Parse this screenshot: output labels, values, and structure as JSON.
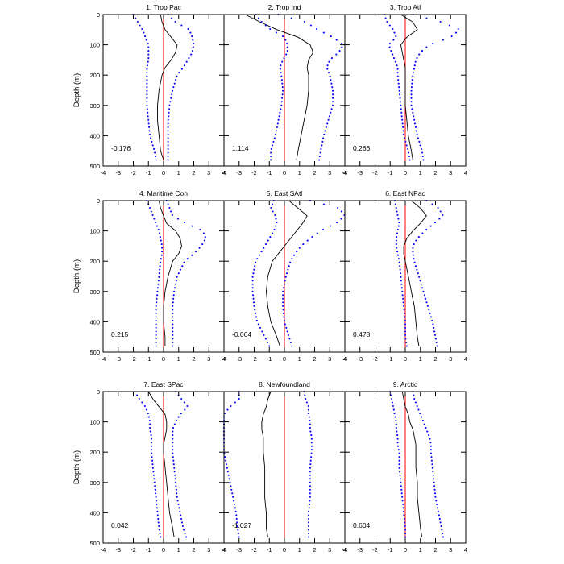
{
  "figure": {
    "ylabel": "Depth (m)"
  },
  "colors": {
    "axis": "#000000",
    "curve": "#000000",
    "zero_line": "#ff0000",
    "dots": "#0000ff",
    "background": "#ffffff"
  },
  "chart_data": [
    {
      "type": "line",
      "title": "1. Trop Pac",
      "annotation": "-0.176",
      "xlim": [
        -4,
        4
      ],
      "ylim": [
        500,
        0
      ],
      "xticks": [
        -4,
        -3,
        -2,
        -1,
        0,
        1,
        2,
        3,
        4
      ],
      "yticks": [
        0,
        100,
        200,
        300,
        400,
        500
      ],
      "depth": [
        0,
        25,
        50,
        75,
        100,
        125,
        150,
        175,
        200,
        250,
        300,
        350,
        400,
        450,
        480
      ],
      "series": [
        {
          "values": [
            -0.2,
            -0.1,
            0.1,
            0.5,
            0.9,
            0.8,
            0.5,
            0.1,
            -0.1,
            -0.3,
            -0.4,
            -0.4,
            -0.3,
            -0.2,
            0.0
          ]
        },
        {
          "values": [
            -2.0,
            -1.7,
            -1.4,
            -1.2,
            -1.0,
            -1.0,
            -1.0,
            -1.1,
            -1.1,
            -1.1,
            -1.1,
            -1.0,
            -0.9,
            -0.6,
            -0.5
          ]
        },
        {
          "values": [
            0.3,
            0.8,
            1.7,
            1.9,
            2.0,
            1.9,
            1.6,
            1.3,
            0.9,
            0.6,
            0.4,
            0.3,
            0.3,
            0.3,
            0.3
          ]
        }
      ]
    },
    {
      "type": "line",
      "title": "2. Trop Ind",
      "annotation": "1.114",
      "xlim": [
        -4,
        4
      ],
      "ylim": [
        500,
        0
      ],
      "xticks": [
        -4,
        -3,
        -2,
        -1,
        0,
        1,
        2,
        3,
        4
      ],
      "yticks": [
        0,
        100,
        200,
        300,
        400,
        500
      ],
      "depth": [
        0,
        25,
        50,
        75,
        100,
        125,
        150,
        175,
        200,
        250,
        300,
        350,
        400,
        450,
        480
      ],
      "series": [
        {
          "values": [
            -2.6,
            -1.6,
            -0.5,
            0.9,
            1.7,
            1.9,
            1.6,
            1.5,
            1.6,
            1.6,
            1.5,
            1.3,
            1.1,
            0.9,
            0.8
          ]
        },
        {
          "values": [
            -1.9,
            -1.5,
            -0.9,
            0.0,
            0.2,
            0.2,
            -0.1,
            -0.3,
            -0.2,
            -0.1,
            -0.2,
            -0.4,
            -0.6,
            -0.9,
            -0.9
          ]
        },
        {
          "values": [
            -0.4,
            1.4,
            2.2,
            3.2,
            3.9,
            3.6,
            3.0,
            2.8,
            3.0,
            3.2,
            3.2,
            2.9,
            2.6,
            2.4,
            2.3
          ]
        }
      ]
    },
    {
      "type": "line",
      "title": "3. Trop Atl",
      "annotation": "0.266",
      "xlim": [
        -4,
        4
      ],
      "ylim": [
        500,
        0
      ],
      "xticks": [
        -4,
        -3,
        -2,
        -1,
        0,
        1,
        2,
        3,
        4
      ],
      "yticks": [
        0,
        100,
        200,
        300,
        400,
        500
      ],
      "depth": [
        0,
        25,
        50,
        75,
        100,
        125,
        150,
        175,
        200,
        250,
        300,
        350,
        400,
        450,
        480
      ],
      "series": [
        {
          "values": [
            -0.3,
            0.5,
            0.8,
            0.1,
            -0.3,
            -0.2,
            -0.1,
            0.0,
            0.0,
            0.0,
            0.0,
            0.1,
            0.2,
            0.4,
            0.5
          ]
        },
        {
          "values": [
            -1.4,
            -1.2,
            -0.8,
            -0.6,
            -1.1,
            -0.9,
            -0.7,
            -0.5,
            -0.5,
            -0.4,
            -0.3,
            -0.2,
            -0.1,
            0.2,
            0.3
          ]
        },
        {
          "values": [
            0.5,
            2.4,
            3.6,
            3.0,
            1.6,
            1.0,
            0.7,
            0.6,
            0.5,
            0.4,
            0.4,
            0.6,
            0.8,
            1.1,
            1.2
          ]
        }
      ]
    },
    {
      "type": "line",
      "title": "4. Maritime Con",
      "annotation": "0.215",
      "xlim": [
        -4,
        4
      ],
      "ylim": [
        500,
        0
      ],
      "xticks": [
        -4,
        -3,
        -2,
        -1,
        0,
        1,
        2,
        3,
        4
      ],
      "yticks": [
        0,
        100,
        200,
        300,
        400,
        500
      ],
      "depth": [
        0,
        25,
        50,
        75,
        100,
        125,
        150,
        175,
        200,
        250,
        300,
        350,
        400,
        450,
        480
      ],
      "series": [
        {
          "values": [
            -0.3,
            -0.2,
            0.0,
            0.2,
            0.8,
            1.1,
            1.2,
            1.0,
            0.6,
            0.3,
            0.1,
            0.0,
            0.0,
            0.1,
            0.1
          ]
        },
        {
          "values": [
            -1.1,
            -0.9,
            -0.7,
            -0.5,
            -0.3,
            -0.2,
            -0.1,
            -0.1,
            -0.2,
            -0.3,
            -0.4,
            -0.5,
            -0.5,
            -0.5,
            -0.5
          ]
        },
        {
          "values": [
            0.2,
            0.4,
            0.6,
            1.5,
            2.6,
            2.8,
            2.5,
            2.0,
            1.4,
            0.9,
            0.7,
            0.6,
            0.6,
            0.6,
            0.6
          ]
        }
      ]
    },
    {
      "type": "line",
      "title": "5. East SAtl",
      "annotation": "-0.064",
      "xlim": [
        -4,
        4
      ],
      "ylim": [
        500,
        0
      ],
      "xticks": [
        -4,
        -3,
        -2,
        -1,
        0,
        1,
        2,
        3,
        4
      ],
      "yticks": [
        0,
        100,
        200,
        300,
        400,
        500
      ],
      "depth": [
        0,
        25,
        50,
        75,
        100,
        125,
        150,
        175,
        200,
        250,
        300,
        350,
        400,
        450,
        480
      ],
      "series": [
        {
          "values": [
            0.3,
            0.9,
            1.5,
            1.2,
            0.8,
            0.4,
            0.0,
            -0.4,
            -0.8,
            -1.1,
            -1.2,
            -1.1,
            -0.9,
            -0.5,
            -0.3
          ]
        },
        {
          "values": [
            -0.7,
            -0.9,
            -0.6,
            -0.5,
            -0.7,
            -1.0,
            -1.3,
            -1.6,
            -1.9,
            -2.1,
            -2.1,
            -2.0,
            -1.8,
            -1.3,
            -1.0
          ]
        },
        {
          "values": [
            1.7,
            3.6,
            4.0,
            3.4,
            2.4,
            1.7,
            1.1,
            0.7,
            0.4,
            0.1,
            -0.1,
            -0.1,
            0.0,
            0.3,
            0.5
          ]
        }
      ]
    },
    {
      "type": "line",
      "title": "6. East NPac",
      "annotation": "0.478",
      "xlim": [
        -4,
        4
      ],
      "ylim": [
        500,
        0
      ],
      "xticks": [
        -4,
        -3,
        -2,
        -1,
        0,
        1,
        2,
        3,
        4
      ],
      "yticks": [
        0,
        100,
        200,
        300,
        400,
        500
      ],
      "depth": [
        0,
        25,
        50,
        75,
        100,
        125,
        150,
        175,
        200,
        250,
        300,
        350,
        400,
        450,
        480
      ],
      "series": [
        {
          "values": [
            0.4,
            1.0,
            1.4,
            1.0,
            0.5,
            0.1,
            -0.1,
            -0.1,
            0.0,
            0.2,
            0.4,
            0.6,
            0.7,
            0.8,
            0.9
          ]
        },
        {
          "values": [
            -0.7,
            -0.6,
            -0.5,
            -0.4,
            -0.5,
            -0.6,
            -0.6,
            -0.5,
            -0.4,
            -0.3,
            -0.2,
            -0.1,
            0.0,
            0.0,
            0.1
          ]
        },
        {
          "values": [
            1.4,
            2.2,
            2.5,
            1.9,
            1.3,
            0.8,
            0.5,
            0.5,
            0.6,
            0.9,
            1.2,
            1.5,
            1.8,
            2.0,
            2.1
          ]
        }
      ]
    },
    {
      "type": "line",
      "title": "7. East SPac",
      "annotation": "0.042",
      "xlim": [
        -4,
        4
      ],
      "ylim": [
        500,
        0
      ],
      "xticks": [
        -4,
        -3,
        -2,
        -1,
        0,
        1,
        2,
        3,
        4
      ],
      "yticks": [
        0,
        100,
        200,
        300,
        400,
        500
      ],
      "depth": [
        0,
        25,
        50,
        75,
        100,
        125,
        150,
        175,
        200,
        250,
        300,
        350,
        400,
        450,
        480
      ],
      "series": [
        {
          "values": [
            -1.0,
            -0.7,
            -0.3,
            0.1,
            0.2,
            0.2,
            0.1,
            0.0,
            0.0,
            0.1,
            0.2,
            0.3,
            0.4,
            0.6,
            0.7
          ]
        },
        {
          "values": [
            -1.9,
            -1.6,
            -1.2,
            -1.0,
            -0.9,
            -0.9,
            -0.8,
            -0.8,
            -0.8,
            -0.7,
            -0.6,
            -0.5,
            -0.4,
            -0.3,
            -0.2
          ]
        },
        {
          "values": [
            0.8,
            1.2,
            1.6,
            1.1,
            0.8,
            0.6,
            0.6,
            0.6,
            0.6,
            0.7,
            0.8,
            0.9,
            1.1,
            1.3,
            1.5
          ]
        }
      ]
    },
    {
      "type": "line",
      "title": "8. Newfoundland",
      "annotation": "-1.027",
      "xlim": [
        -4,
        4
      ],
      "ylim": [
        500,
        0
      ],
      "xticks": [
        -4,
        -3,
        -2,
        -1,
        0,
        1,
        2,
        3,
        4
      ],
      "yticks": [
        0,
        100,
        200,
        300,
        400,
        500
      ],
      "depth": [
        0,
        25,
        50,
        75,
        100,
        125,
        150,
        175,
        200,
        250,
        300,
        350,
        400,
        450,
        480
      ],
      "series": [
        {
          "values": [
            -0.9,
            -1.1,
            -1.2,
            -1.4,
            -1.5,
            -1.5,
            -1.4,
            -1.4,
            -1.4,
            -1.3,
            -1.3,
            -1.3,
            -1.2,
            -1.2,
            -1.1
          ]
        },
        {
          "values": [
            -3.0,
            -3.0,
            -3.6,
            -4.0,
            -4.0,
            -4.0,
            -4.0,
            -4.0,
            -4.0,
            -3.8,
            -3.6,
            -3.4,
            -3.2,
            -3.1,
            -3.0
          ]
        },
        {
          "values": [
            1.3,
            1.4,
            1.6,
            1.6,
            1.7,
            1.7,
            1.8,
            1.8,
            1.8,
            1.7,
            1.7,
            1.7,
            1.6,
            1.6,
            1.6
          ]
        }
      ]
    },
    {
      "type": "line",
      "title": "9. Arctic",
      "annotation": "0.604",
      "xlim": [
        -4,
        4
      ],
      "ylim": [
        500,
        0
      ],
      "xticks": [
        -4,
        -3,
        -2,
        -1,
        0,
        1,
        2,
        3,
        4
      ],
      "yticks": [
        0,
        100,
        200,
        300,
        400,
        500
      ],
      "depth": [
        0,
        25,
        50,
        75,
        100,
        125,
        150,
        175,
        200,
        250,
        300,
        350,
        400,
        450,
        480
      ],
      "series": [
        {
          "values": [
            -0.2,
            -0.1,
            0.0,
            0.2,
            0.3,
            0.5,
            0.6,
            0.7,
            0.7,
            0.7,
            0.8,
            0.8,
            0.9,
            1.0,
            1.1
          ]
        },
        {
          "values": [
            -1.0,
            -0.9,
            -0.8,
            -0.7,
            -0.6,
            -0.6,
            -0.5,
            -0.5,
            -0.4,
            -0.4,
            -0.3,
            -0.2,
            -0.1,
            0.0,
            0.0
          ]
        },
        {
          "values": [
            0.5,
            0.6,
            0.8,
            1.0,
            1.2,
            1.4,
            1.6,
            1.7,
            1.7,
            1.8,
            1.9,
            2.0,
            2.2,
            2.4,
            2.5
          ]
        }
      ]
    }
  ]
}
